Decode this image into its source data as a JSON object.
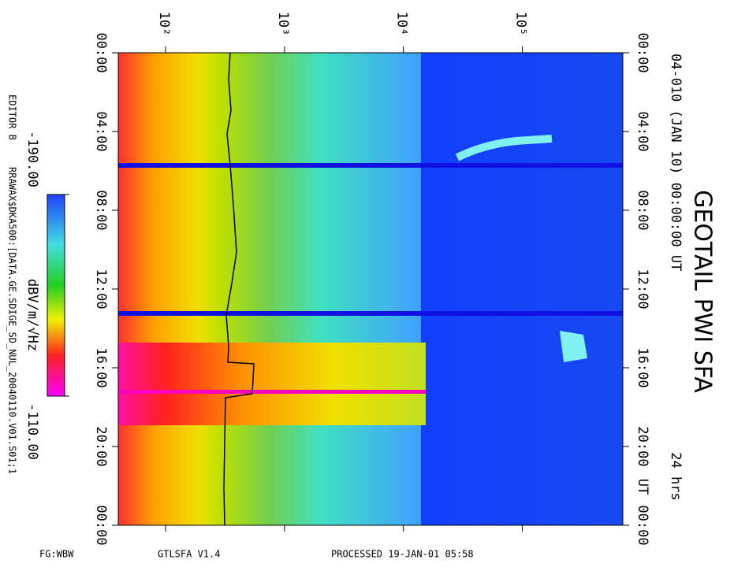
{
  "chart_data": {
    "type": "spectrogram",
    "title": "GEOTAIL PWI SFA",
    "subtitle": "04-010 (JAN 10) 00:00:00 UT",
    "duration": "24 hrs",
    "editor": "EDITOR B",
    "file": "RRAWAX$DKA500:[DATA.GE.SDIGE_SD_NUL_20040110.V01.S01;1",
    "footer_left": "FG:WBW",
    "footer_mid": "GTLSFA   V1.4",
    "footer_right": "PROCESSED 19-JAN-01   05:58",
    "time_unit": "UT",
    "xscale": "log",
    "xlim": [
      40,
      700000
    ],
    "xticks": [
      {
        "value": 100,
        "label": "10²"
      },
      {
        "value": 1000,
        "label": "10³"
      },
      {
        "value": 10000,
        "label": "10⁴"
      },
      {
        "value": 100000,
        "label": "10⁵"
      }
    ],
    "ylim": [
      0,
      24
    ],
    "yticks": [
      {
        "value": 0,
        "label": "00:00"
      },
      {
        "value": 4,
        "label": "04:00"
      },
      {
        "value": 8,
        "label": "08:00"
      },
      {
        "value": 12,
        "label": "12:00"
      },
      {
        "value": 16,
        "label": "16:00"
      },
      {
        "value": 20,
        "label": "20:00"
      },
      {
        "value": 24,
        "label": "00:00"
      }
    ],
    "colorbar": {
      "label": "dBV/m/√Hz",
      "clim": [
        -190,
        -110
      ],
      "ticks": [
        {
          "value": -190,
          "label": "-190.00"
        },
        {
          "value": -110,
          "label": "-110.00"
        }
      ]
    }
  }
}
